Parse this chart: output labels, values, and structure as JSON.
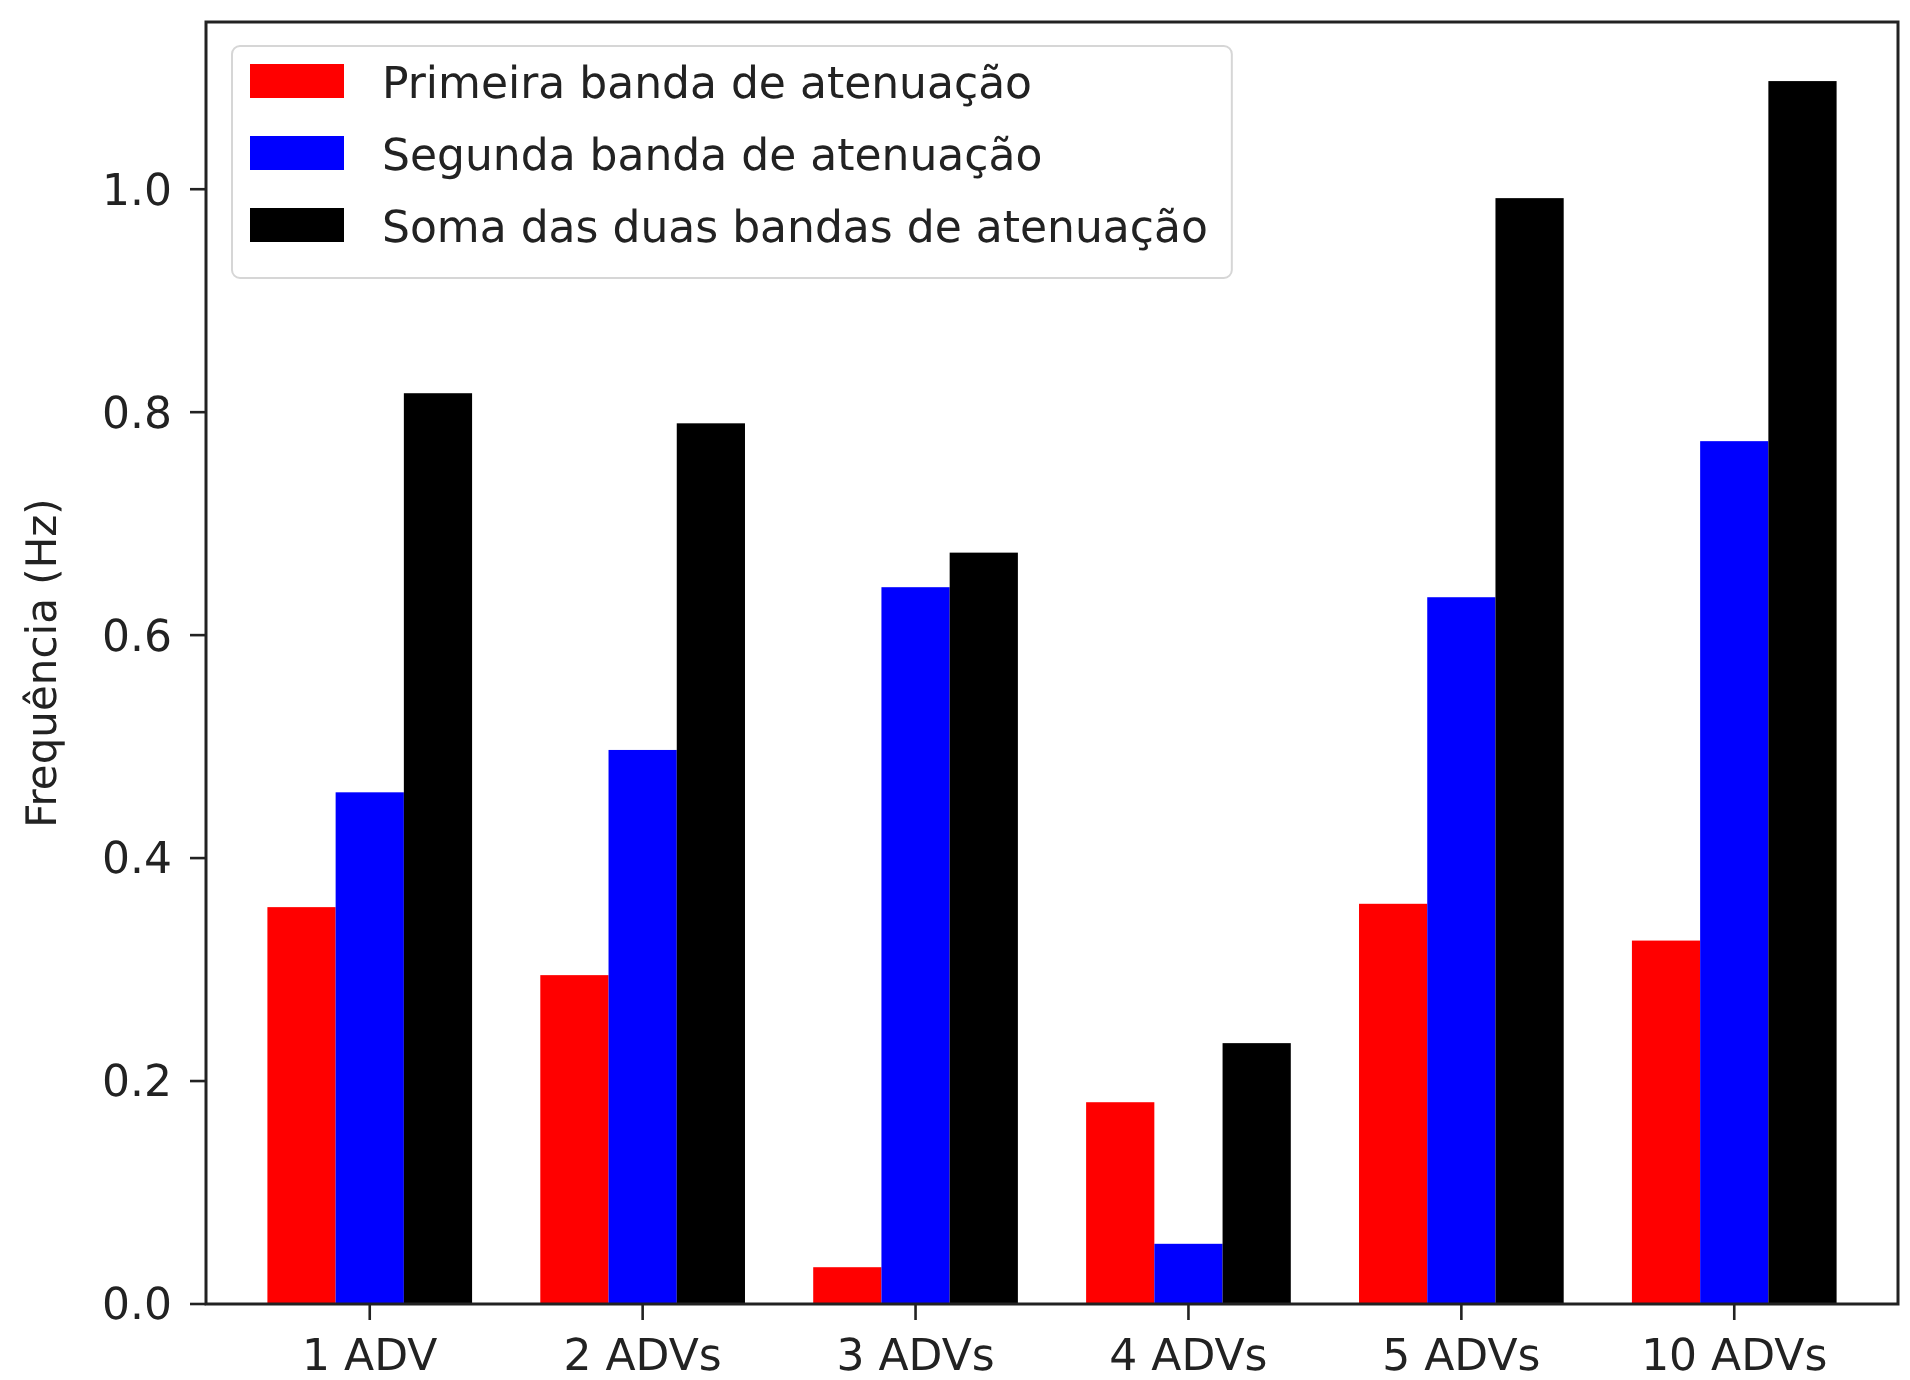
{
  "chart_data": {
    "type": "bar",
    "ylabel": "Frequência (Hz)",
    "categories": [
      "1 ADV",
      "2 ADVs",
      "3 ADVs",
      "4 ADVs",
      "5 ADVs",
      "10 ADVs"
    ],
    "series": [
      {
        "name": "Primeira banda de atenuação",
        "color": "#ff0000",
        "values": [
          0.356,
          0.295,
          0.033,
          0.181,
          0.359,
          0.326
        ]
      },
      {
        "name": "Segunda banda de atenuação",
        "color": "#0000ff",
        "values": [
          0.459,
          0.497,
          0.643,
          0.054,
          0.634,
          0.774
        ]
      },
      {
        "name": "Soma das duas bandas de atenuação",
        "color": "#000000",
        "values": [
          0.817,
          0.79,
          0.674,
          0.234,
          0.992,
          1.097
        ]
      }
    ],
    "ylim": [
      0,
      1.15
    ],
    "yticks": [
      {
        "value": 0,
        "label": "0.0"
      },
      0.2,
      0.4,
      0.6,
      0.8,
      {
        "value": 1,
        "label": "1.0"
      }
    ],
    "grid": false,
    "legend": "top left"
  }
}
